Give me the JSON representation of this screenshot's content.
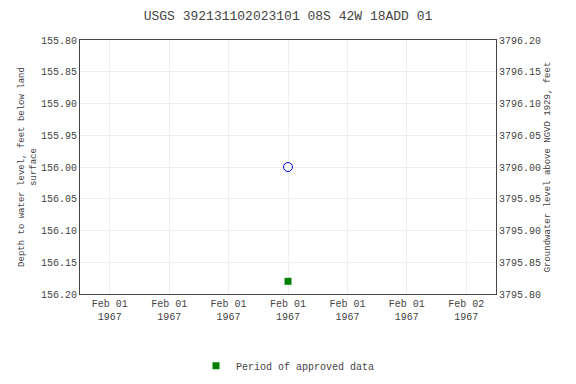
{
  "chart_data": {
    "type": "scatter",
    "title": "USGS 392131102023101 08S 42W 18ADD 01",
    "y_label": "Depth to water level, feet below land\nsurface",
    "y2_label": "Groundwater level above NGVD 1929, feet",
    "categories": [
      "Feb 01\n1967",
      "Feb 01\n1967",
      "Feb 01\n1967",
      "Feb 01\n1967",
      "Feb 01\n1967",
      "Feb 01\n1967",
      "Feb 02\n1967"
    ],
    "series": [
      {
        "color": "blue",
        "marker": "circle-open",
        "values": [
          null,
          null,
          null,
          156.0,
          null,
          null,
          null
        ]
      },
      {
        "name": "Period of approved data",
        "color": "#008000",
        "marker": "square",
        "values": [
          null,
          null,
          null,
          156.18,
          null,
          null,
          null
        ]
      }
    ],
    "ylim": [
      156.2,
      155.8
    ],
    "yticks": [
      {
        "value": 155.8,
        "label": "155.80"
      },
      {
        "value": 155.85,
        "label": "155.85"
      },
      {
        "value": 155.9,
        "label": "155.90"
      },
      {
        "value": 155.95,
        "label": "155.95"
      },
      {
        "value": 156.0,
        "label": "156.00"
      },
      {
        "value": 156.05,
        "label": "156.05"
      },
      {
        "value": 156.1,
        "label": "156.10"
      },
      {
        "value": 156.15,
        "label": "156.15"
      },
      {
        "value": 156.2,
        "label": "156.20"
      }
    ],
    "y2lim": [
      3795.8,
      3796.2
    ],
    "y2ticks": [
      {
        "value": 3795.8,
        "label": "3795.80"
      },
      {
        "value": 3795.85,
        "label": "3795.85"
      },
      {
        "value": 3795.9,
        "label": "3795.90"
      },
      {
        "value": 3795.95,
        "label": "3795.95"
      },
      {
        "value": 3796.0,
        "label": "3796.00"
      },
      {
        "value": 3796.05,
        "label": "3796.05"
      },
      {
        "value": 3796.1,
        "label": "3796.10"
      },
      {
        "value": 3796.15,
        "label": "3796.15"
      },
      {
        "value": 3796.2,
        "label": "3796.20"
      }
    ],
    "grid": true,
    "legend": "bottom"
  }
}
